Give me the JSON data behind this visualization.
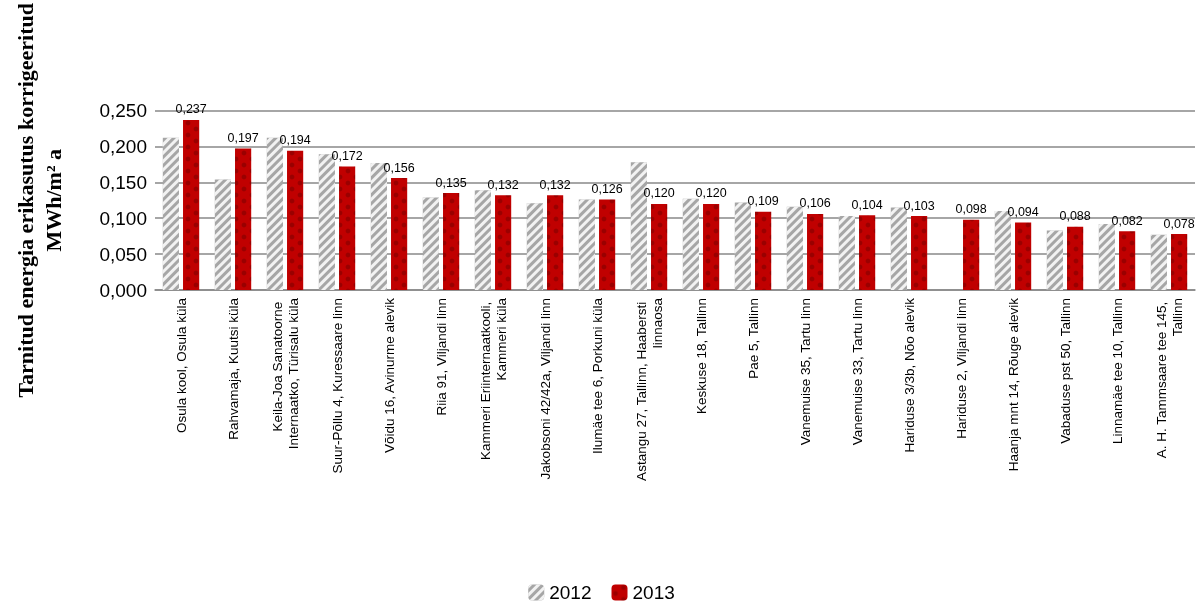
{
  "chart_data": {
    "type": "bar",
    "ylabel": "Tarnitud energia erikasutus korrigeeritud\nMWh/m² a",
    "categories": [
      "Osula kool, Osula küla",
      "Rahvamaja, Kuutsi küla",
      "Keila-Joa Sanatoorne Internaatko, Türisalu küla",
      "Suur-Põllu 4, Kuressaare linn",
      "Võidu 16, Avinurme alevik",
      "Riia 91, Viljandi linn",
      "Kammeri Eriinternaatkooli, Kammeri küla",
      "Jakobsoni 42/42a, Viljandi linn",
      "Ilumäe tee 6, Porkuni küla",
      "Astangu 27, Tallinn, Haabersti linnaosa",
      "Keskuse 18, Tallinn",
      "Pae 5, Tallinn",
      "Vanemuise 35, Tartu linn",
      "Vanemuise 33, Tartu linn",
      "Hariduse 3/3b, Nõo alevik",
      "Hariduse 2, Viljandi linn",
      "Haanja mnt 14, Rõuge alevik",
      "Vabaduse pst 50, Tallinn",
      "Linnamäe tee 10, Tallinn",
      "A. H. Tammsaare tee 145, Tallinn"
    ],
    "series": [
      {
        "name": "2012",
        "color": "#a6a6a6",
        "values": [
          0.212,
          0.154,
          0.212,
          0.189,
          0.177,
          0.129,
          0.139,
          0.121,
          0.126,
          0.178,
          0.127,
          0.122,
          0.116,
          0.103,
          0.115,
          null,
          0.11,
          0.083,
          0.092,
          0.077
        ]
      },
      {
        "name": "2013",
        "color": "#c00000",
        "values": [
          0.237,
          0.197,
          0.194,
          0.172,
          0.156,
          0.135,
          0.132,
          0.132,
          0.126,
          0.12,
          0.12,
          0.109,
          0.106,
          0.104,
          0.103,
          0.098,
          0.094,
          0.088,
          0.082,
          0.078
        ],
        "value_labels": [
          "0,237",
          "0,197",
          "0,194",
          "0,172",
          "0,156",
          "0,135",
          "0,132",
          "0,132",
          "0,126",
          "0,120",
          "0,120",
          "0,109",
          "0,106",
          "0,104",
          "0,103",
          "0,098",
          "0,094",
          "0,088",
          "0,082",
          "0,078"
        ]
      }
    ],
    "ylim": [
      0,
      0.25
    ],
    "yticks": [
      {
        "value": 0,
        "label": "0,000"
      },
      {
        "value": 0.05,
        "label": "0,050"
      },
      {
        "value": 0.1,
        "label": "0,100"
      },
      {
        "value": 0.15,
        "label": "0,150"
      },
      {
        "value": 0.2,
        "label": "0,200"
      },
      {
        "value": 0.25,
        "label": "0,250"
      }
    ],
    "grid": "y",
    "legend": "bottom"
  }
}
